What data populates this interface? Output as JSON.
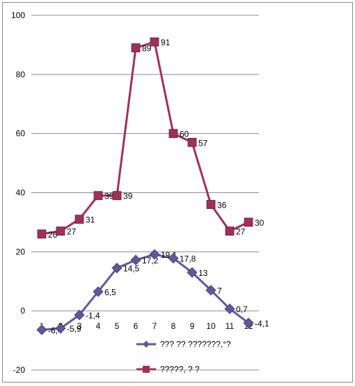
{
  "chart_data": {
    "type": "line",
    "title": "",
    "xlabel": "",
    "ylabel": "",
    "ylim": [
      -20,
      100
    ],
    "yticks": [
      "-20",
      "0",
      "20",
      "40",
      "60",
      "80",
      "100"
    ],
    "categories": [
      "1",
      "2",
      "3",
      "4",
      "5",
      "6",
      "7",
      "8",
      "9",
      "10",
      "11",
      "12"
    ],
    "grid": true,
    "legend_position": "bottom",
    "series": [
      {
        "name": "??? ?? ???????,°?",
        "color": "#5b5b9b",
        "marker": "diamond",
        "values": [
          -6.4,
          -5.9,
          -1.4,
          6.5,
          14.5,
          17.2,
          19.1,
          17.8,
          13,
          7,
          0.7,
          -4.1
        ],
        "labels": [
          "-6,4",
          "-5,9",
          "-1,4",
          "6,5",
          "14,5",
          "17,2",
          "19,1",
          "17,8",
          "13",
          "7",
          "0,7",
          "-4,1"
        ]
      },
      {
        "name": "?????, ? ?",
        "color": "#a0305a",
        "marker": "square",
        "values": [
          26,
          27,
          31,
          39,
          39,
          89,
          91,
          60,
          57,
          36,
          27,
          30
        ],
        "labels": [
          "26",
          "27",
          "31",
          "39",
          "39",
          "89",
          "91",
          "60",
          "57",
          "36",
          "27",
          "30"
        ]
      }
    ]
  }
}
